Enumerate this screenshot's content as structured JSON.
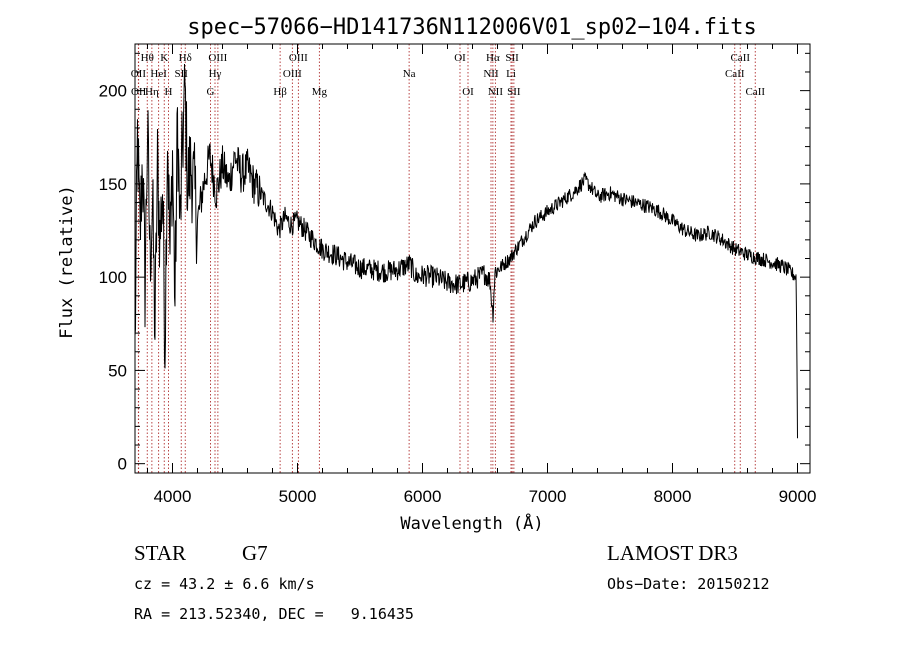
{
  "chart_data": {
    "type": "line",
    "title": "spec−57066−HD141736N112006V01_sp02−104.fits",
    "xlabel": "Wavelength (Å)",
    "ylabel": "Flux (relative)",
    "xlim": [
      3700,
      9100
    ],
    "ylim": [
      -5,
      225
    ],
    "xticks": [
      4000,
      5000,
      6000,
      7000,
      8000,
      9000
    ],
    "yticks": [
      0,
      50,
      100,
      150,
      200
    ],
    "spectrum": {
      "name": "flux",
      "x": [
        3700,
        3720,
        3740,
        3760,
        3780,
        3800,
        3820,
        3840,
        3860,
        3880,
        3900,
        3920,
        3940,
        3960,
        3980,
        4000,
        4020,
        4040,
        4060,
        4080,
        4100,
        4120,
        4150,
        4200,
        4250,
        4300,
        4350,
        4400,
        4450,
        4500,
        4550,
        4600,
        4650,
        4700,
        4750,
        4800,
        4850,
        4900,
        4950,
        5000,
        5100,
        5200,
        5300,
        5400,
        5500,
        5600,
        5700,
        5800,
        5900,
        5950,
        6000,
        6100,
        6200,
        6300,
        6400,
        6500,
        6540,
        6563,
        6580,
        6620,
        6700,
        6800,
        6900,
        7000,
        7100,
        7200,
        7300,
        7350,
        7400,
        7500,
        7600,
        7700,
        7800,
        7900,
        8000,
        8100,
        8200,
        8300,
        8400,
        8500,
        8600,
        8700,
        8800,
        8900,
        8990,
        9000
      ],
      "values": [
        60,
        175,
        120,
        165,
        95,
        180,
        110,
        140,
        70,
        160,
        120,
        150,
        65,
        180,
        110,
        165,
        85,
        185,
        125,
        170,
        200,
        150,
        160,
        130,
        150,
        165,
        145,
        160,
        150,
        165,
        155,
        158,
        150,
        145,
        140,
        135,
        125,
        132,
        128,
        130,
        122,
        115,
        112,
        108,
        105,
        104,
        103,
        104,
        107,
        100,
        101,
        100,
        97,
        96,
        98,
        102,
        98,
        80,
        103,
        105,
        110,
        120,
        130,
        135,
        140,
        145,
        152,
        148,
        143,
        145,
        142,
        140,
        138,
        135,
        130,
        125,
        122,
        124,
        120,
        115,
        112,
        110,
        108,
        105,
        100,
        15
      ]
    },
    "reference_lines": [
      {
        "label": "Hθ",
        "wavelength": 3798,
        "row": 0
      },
      {
        "label": "K",
        "wavelength": 3934,
        "row": 0
      },
      {
        "label": "Hδ",
        "wavelength": 4102,
        "row": 0
      },
      {
        "label": "OIII",
        "wavelength": 4363,
        "row": 0
      },
      {
        "label": "OIII",
        "wavelength": 5007,
        "row": 0
      },
      {
        "label": "OI",
        "wavelength": 6300,
        "row": 0
      },
      {
        "label": "Hα",
        "wavelength": 6563,
        "row": 0
      },
      {
        "label": "SII",
        "wavelength": 6717,
        "row": 0
      },
      {
        "label": "CaII",
        "wavelength": 8542,
        "row": 0
      },
      {
        "label": "OII",
        "wavelength": 3727,
        "row": 1
      },
      {
        "label": "HeI",
        "wavelength": 3889,
        "row": 1
      },
      {
        "label": "SII",
        "wavelength": 4070,
        "row": 1
      },
      {
        "label": "Hγ",
        "wavelength": 4340,
        "row": 1
      },
      {
        "label": "OIII",
        "wavelength": 4959,
        "row": 1
      },
      {
        "label": "Na",
        "wavelength": 5893,
        "row": 1
      },
      {
        "label": "NII",
        "wavelength": 6548,
        "row": 1
      },
      {
        "label": "Li",
        "wavelength": 6708,
        "row": 1
      },
      {
        "label": "CaII",
        "wavelength": 8498,
        "row": 1
      },
      {
        "label": "OII",
        "wavelength": 3729,
        "row": 2
      },
      {
        "label": "Hη",
        "wavelength": 3835,
        "row": 2
      },
      {
        "label": "H",
        "wavelength": 3968,
        "row": 2
      },
      {
        "label": "G",
        "wavelength": 4304,
        "row": 2
      },
      {
        "label": "Hβ",
        "wavelength": 4861,
        "row": 2
      },
      {
        "label": "Mg",
        "wavelength": 5175,
        "row": 2
      },
      {
        "label": "OI",
        "wavelength": 6364,
        "row": 2
      },
      {
        "label": "NII",
        "wavelength": 6583,
        "row": 2
      },
      {
        "label": "SII",
        "wavelength": 6731,
        "row": 2
      },
      {
        "label": "CaII",
        "wavelength": 8662,
        "row": 2
      }
    ]
  },
  "info": {
    "object_class": "STAR",
    "subclass": "G7",
    "survey": "LAMOST DR3",
    "redshift": "cz = 43.2 ± 6.6 km/s",
    "obs_date": "Obs−Date: 20150212",
    "coords": "RA = 213.52340, DEC =   9.16435"
  }
}
